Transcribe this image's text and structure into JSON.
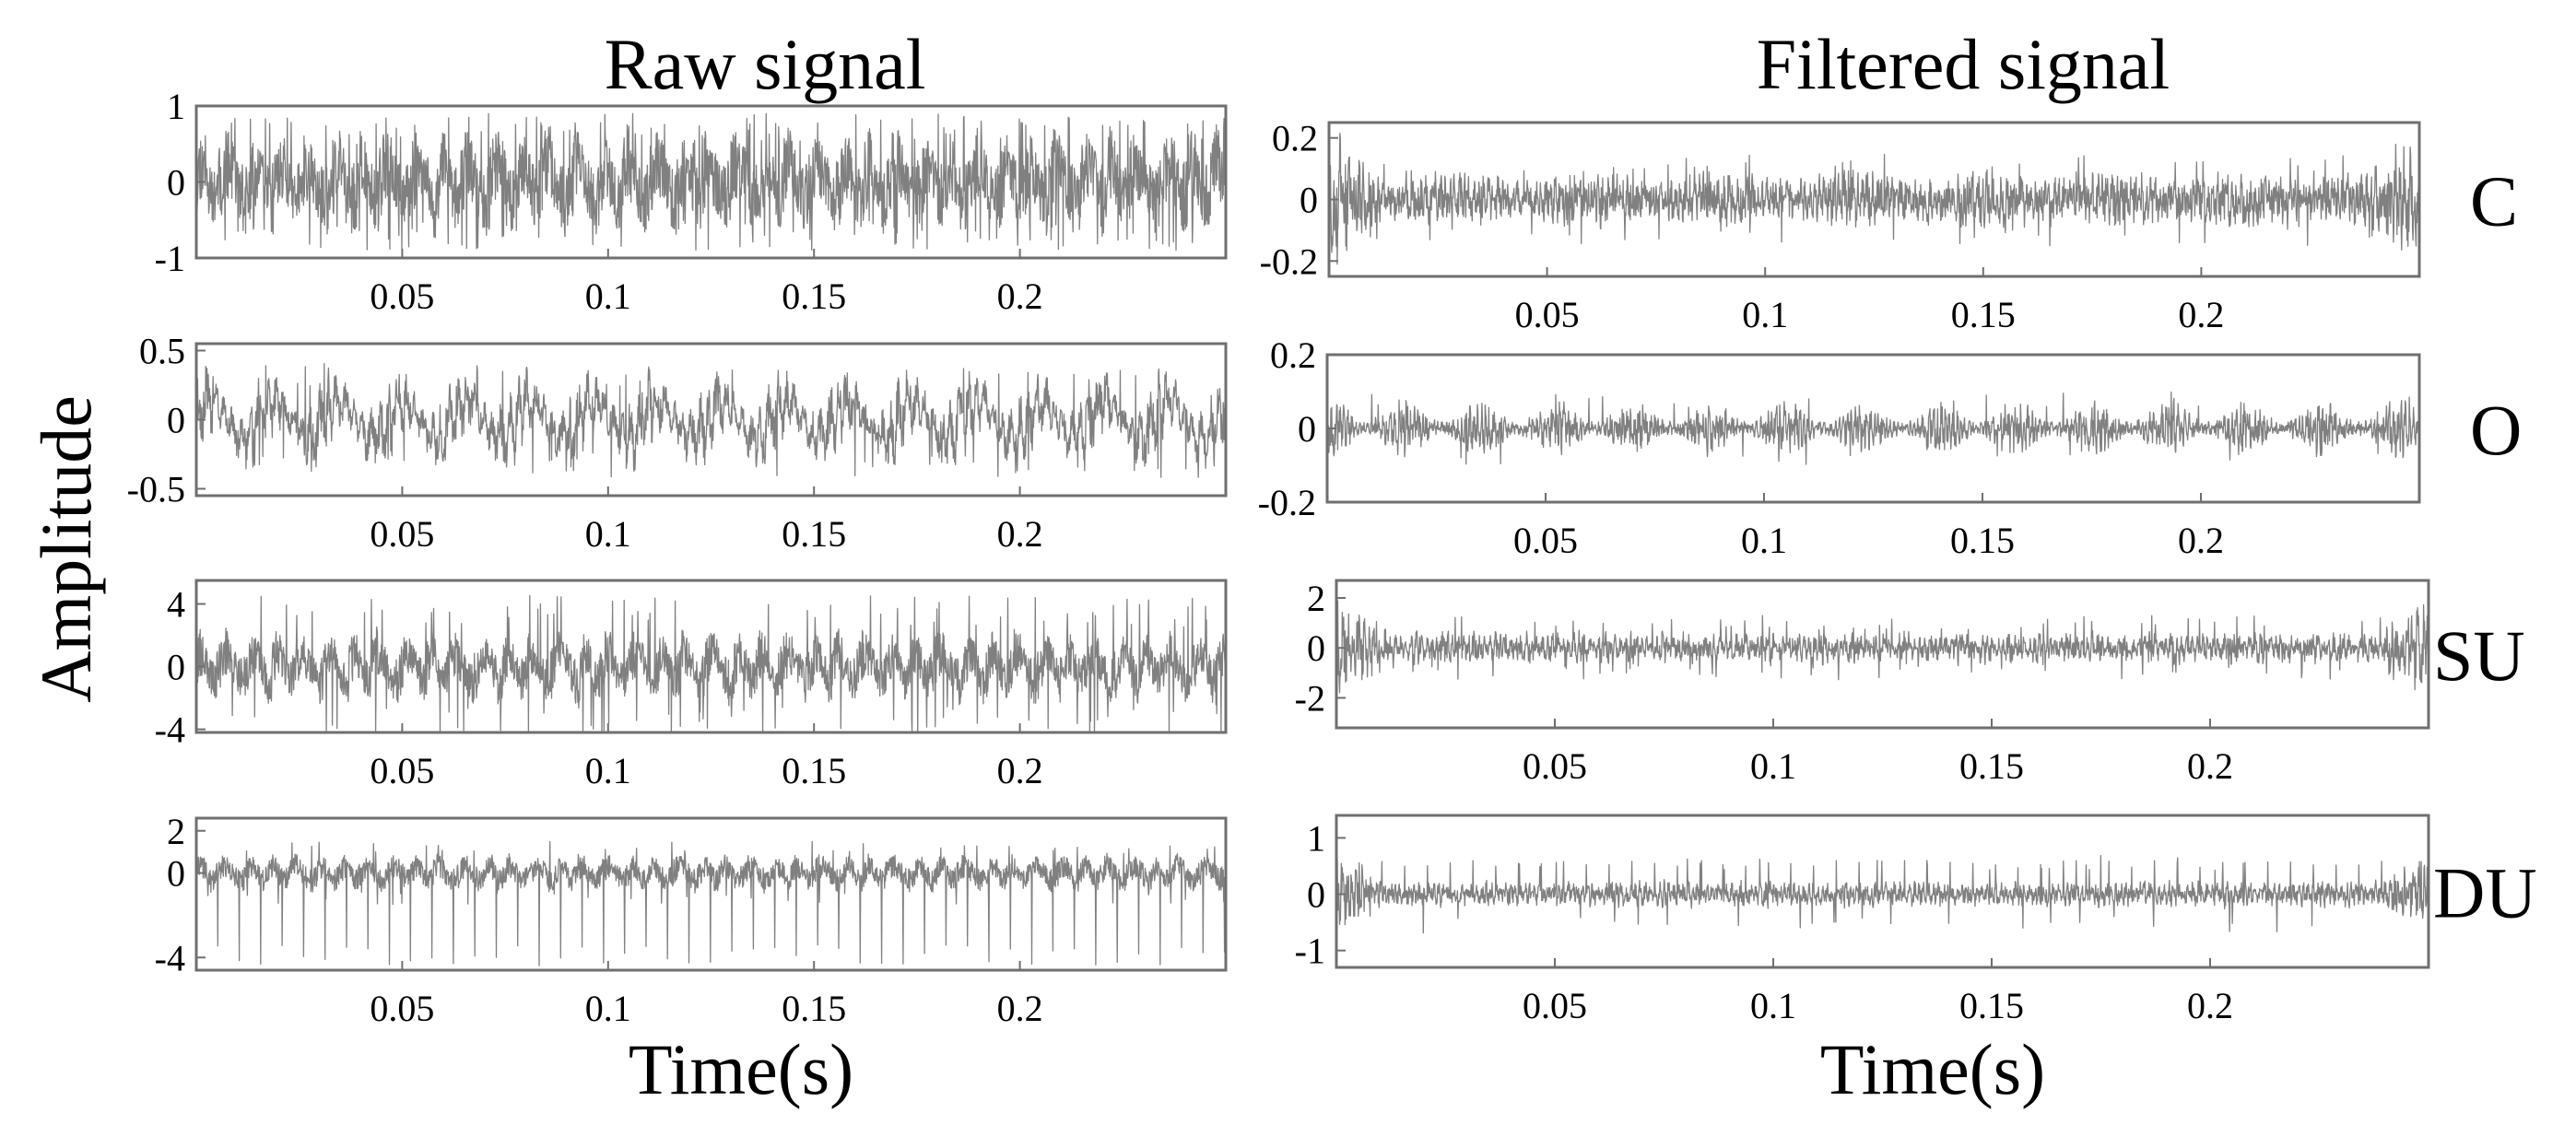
{
  "column_titles": [
    "Raw signal",
    "Filtered signal"
  ],
  "y_label": "Amplitude",
  "x_labels": [
    "Time(s)",
    "Time(s)"
  ],
  "row_labels": [
    "C",
    "O",
    "SU",
    "DU"
  ],
  "chart_data": [
    {
      "type": "line",
      "column": "Raw signal",
      "row": "C",
      "xlim": [
        0,
        0.25
      ],
      "ylim": [
        -1,
        1
      ],
      "xticks": [
        0.05,
        0.1,
        0.15,
        0.2
      ],
      "xtick_labels": [
        "0.05",
        "0.1",
        "0.15",
        "0.2"
      ],
      "yticks": [
        1,
        0,
        -1
      ],
      "ytick_labels": [
        "1",
        "0",
        "-1"
      ],
      "series": [
        {
          "x_range": [
            0,
            0.25
          ],
          "samples": 2400,
          "amplitude": 0.6,
          "carrier_period": 0.0065,
          "envelope_period": 0.0065,
          "envelope_depth": 0.3,
          "spike_amplitude": 0.9,
          "spike_rate": 0.08,
          "spike_sign": "both",
          "edge_boost": 1.0,
          "noise_mix": 0.55,
          "seed": 11
        }
      ],
      "color": "#808080"
    },
    {
      "type": "line",
      "column": "Raw signal",
      "row": "O",
      "xlim": [
        0,
        0.25
      ],
      "ylim": [
        -0.55,
        0.55
      ],
      "xticks": [
        0.05,
        0.1,
        0.15,
        0.2
      ],
      "xtick_labels": [
        "0.05",
        "0.1",
        "0.15",
        "0.2"
      ],
      "yticks": [
        0.5,
        0,
        -0.5
      ],
      "ytick_labels": [
        "0.5",
        "0",
        "-0.5"
      ],
      "series": [
        {
          "x_range": [
            0,
            0.25
          ],
          "samples": 2400,
          "amplitude": 0.26,
          "carrier_period": 0.0021,
          "envelope_period": 0.0155,
          "envelope_depth": 0.55,
          "slow_amplitude": 0.13,
          "spike_amplitude": 0.42,
          "spike_rate": 0.02,
          "spike_sign": "both",
          "edge_boost": 1.0,
          "noise_mix": 0.45,
          "seed": 23
        }
      ],
      "color": "#808080"
    },
    {
      "type": "line",
      "column": "Raw signal",
      "row": "SU",
      "xlim": [
        0,
        0.25
      ],
      "ylim": [
        -4.2,
        5.5
      ],
      "xticks": [
        0.05,
        0.1,
        0.15,
        0.2
      ],
      "xtick_labels": [
        "0.05",
        "0.1",
        "0.15",
        "0.2"
      ],
      "yticks": [
        4,
        0,
        -4
      ],
      "ytick_labels": [
        "4",
        "0",
        "-4"
      ],
      "series": [
        {
          "x_range": [
            0,
            0.25
          ],
          "samples": 2400,
          "amplitude": 2.1,
          "carrier_period": 0.0062,
          "envelope_period": 0.0062,
          "envelope_depth": 0.35,
          "spike_amplitude": 4.6,
          "spike_rate": 0.05,
          "spike_sign": "both",
          "edge_boost": 1.0,
          "noise_mix": 0.5,
          "seed": 37
        }
      ],
      "color": "#808080"
    },
    {
      "type": "line",
      "column": "Raw signal",
      "row": "DU",
      "xlim": [
        0,
        0.25
      ],
      "ylim": [
        -4.6,
        2.6
      ],
      "xticks": [
        0.05,
        0.1,
        0.15,
        0.2
      ],
      "xtick_labels": [
        "0.05",
        "0.1",
        "0.15",
        "0.2"
      ],
      "yticks": [
        2,
        0,
        -4
      ],
      "ytick_labels": [
        "2",
        "0",
        "-4"
      ],
      "series": [
        {
          "x_range": [
            0,
            0.25
          ],
          "samples": 2400,
          "amplitude": 0.75,
          "carrier_period": 0.0058,
          "envelope_period": 0.0058,
          "envelope_depth": 0.2,
          "spike_amplitude": 1.5,
          "spike_rate": 0.03,
          "spike_sign": "both",
          "periodic_spike_period": 0.0052,
          "periodic_spike_value": -4.0,
          "edge_boost": 1.0,
          "noise_mix": 0.5,
          "seed": 41
        }
      ],
      "color": "#808080"
    },
    {
      "type": "line",
      "column": "Filtered signal",
      "row": "C",
      "xlim": [
        0,
        0.25
      ],
      "ylim": [
        -0.25,
        0.25
      ],
      "xticks": [
        0.05,
        0.1,
        0.15,
        0.2
      ],
      "xtick_labels": [
        "0.05",
        "0.1",
        "0.15",
        "0.2"
      ],
      "yticks": [
        0.2,
        0,
        -0.2
      ],
      "ytick_labels": [
        "0.2",
        "0",
        "-0.2"
      ],
      "series": [
        {
          "x_range": [
            0,
            0.25
          ],
          "samples": 2400,
          "amplitude": 0.075,
          "carrier_period": 0.0011,
          "envelope_period": 0.03,
          "envelope_depth": 0.3,
          "spike_amplitude": 0.15,
          "spike_rate": 0.03,
          "spike_sign": "both",
          "edge_boost": 2.6,
          "noise_mix": 0.6,
          "seed": 53
        }
      ],
      "color": "#808080"
    },
    {
      "type": "line",
      "column": "Filtered signal",
      "row": "O",
      "xlim": [
        0,
        0.25
      ],
      "ylim": [
        -0.2,
        0.2
      ],
      "xticks": [
        0.05,
        0.1,
        0.15,
        0.2
      ],
      "xtick_labels": [
        "0.05",
        "0.1",
        "0.15",
        "0.2"
      ],
      "yticks": [
        0.2,
        0,
        -0.2
      ],
      "ytick_labels": [
        "0.2",
        "0",
        "-0.2"
      ],
      "series": [
        {
          "x_range": [
            0,
            0.25
          ],
          "samples": 2400,
          "amplitude": 0.06,
          "carrier_period": 0.0009,
          "envelope_period": 0.0175,
          "envelope_depth": 0.75,
          "spike_amplitude": 0.1,
          "spike_rate": 0.015,
          "spike_sign": "both",
          "edge_boost": 1.2,
          "noise_mix": 0.55,
          "seed": 67
        }
      ],
      "color": "#808080"
    },
    {
      "type": "line",
      "column": "Filtered signal",
      "row": "SU",
      "xlim": [
        0,
        0.25
      ],
      "ylim": [
        -3.2,
        2.7
      ],
      "xticks": [
        0.05,
        0.1,
        0.15,
        0.2
      ],
      "xtick_labels": [
        "0.05",
        "0.1",
        "0.15",
        "0.2"
      ],
      "yticks": [
        2,
        0,
        -2
      ],
      "ytick_labels": [
        "2",
        "0",
        "-2"
      ],
      "series": [
        {
          "x_range": [
            0,
            0.25
          ],
          "samples": 2400,
          "amplitude": 0.55,
          "carrier_period": 0.0012,
          "envelope_period": 0.0062,
          "envelope_depth": 0.35,
          "spike_amplitude": 1.3,
          "spike_rate": 0.04,
          "spike_sign": "both",
          "edge_boost": 3.5,
          "noise_mix": 0.55,
          "seed": 79
        }
      ],
      "color": "#808080"
    },
    {
      "type": "line",
      "column": "Filtered signal",
      "row": "DU",
      "xlim": [
        0,
        0.25
      ],
      "ylim": [
        -1.3,
        1.4
      ],
      "xticks": [
        0.05,
        0.1,
        0.15,
        0.2
      ],
      "xtick_labels": [
        "0.05",
        "0.1",
        "0.15",
        "0.2"
      ],
      "yticks": [
        1,
        0,
        -1
      ],
      "ytick_labels": [
        "1",
        "0",
        "-1"
      ],
      "series": [
        {
          "x_range": [
            0,
            0.25
          ],
          "samples": 2400,
          "amplitude": 0.2,
          "carrier_period": 0.0011,
          "envelope_period": 0.0058,
          "envelope_depth": 0.25,
          "spike_amplitude": 0.7,
          "spike_rate": 0.02,
          "spike_sign": "both",
          "periodic_spike_period": 0.0052,
          "periodic_spike_value": 0.55,
          "edge_boost": 3.0,
          "noise_mix": 0.55,
          "seed": 97
        }
      ],
      "color": "#808080"
    }
  ]
}
